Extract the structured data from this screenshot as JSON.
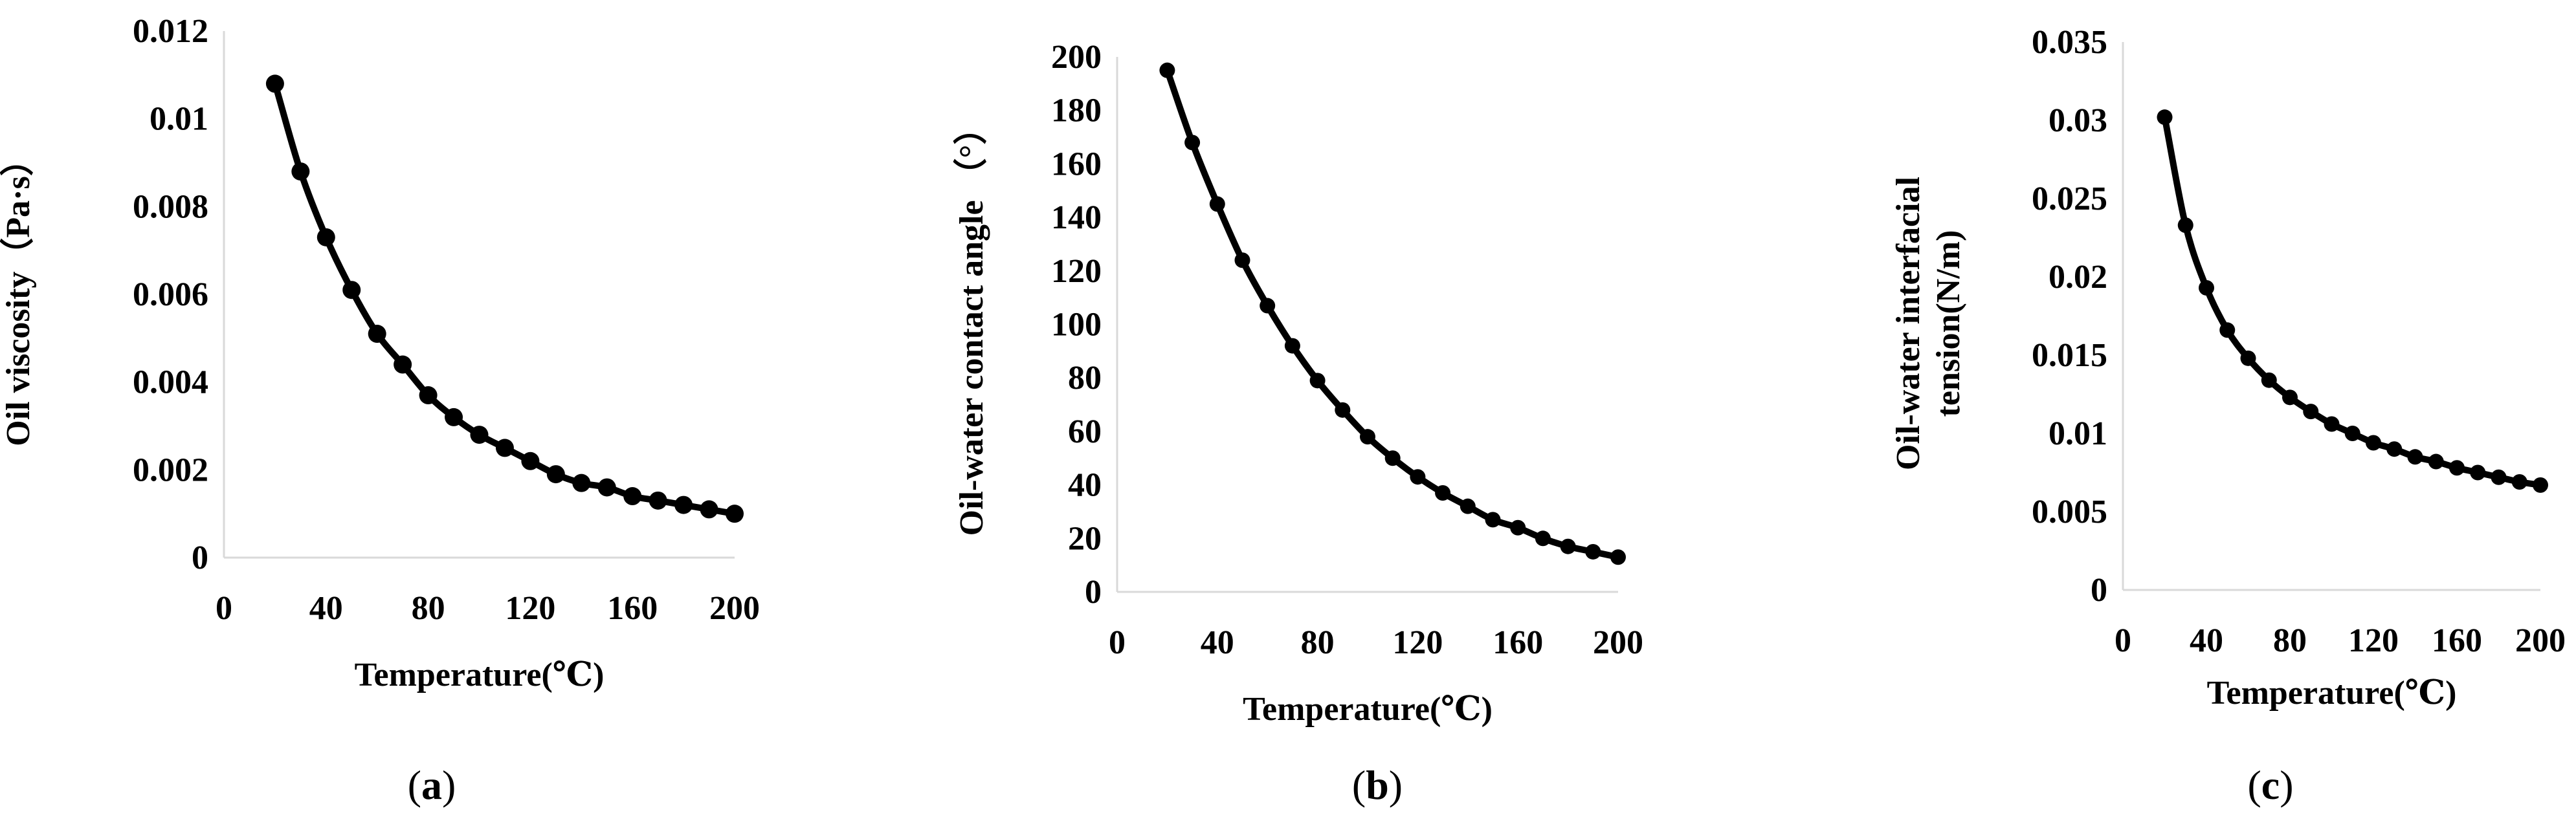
{
  "chart_data": [
    {
      "type": "line",
      "panel_label": "a",
      "xlabel": "Temperature(℃)",
      "ylabel": "Oil viscosity（Pa·s）",
      "xlim": [
        0,
        200
      ],
      "ylim": [
        0,
        0.012
      ],
      "xticks": [
        0,
        40,
        80,
        120,
        160,
        200
      ],
      "yticks": [
        0,
        0.002,
        0.004,
        0.006,
        0.008,
        0.01,
        0.012
      ],
      "ytick_labels": [
        "0",
        "0.002",
        "0.004",
        "0.006",
        "0.008",
        "0.01",
        "0.012"
      ],
      "markers": true,
      "grid": false,
      "series": [
        {
          "x": [
            20,
            30,
            40,
            50,
            60,
            70,
            80,
            90,
            100,
            110,
            120,
            130,
            140,
            150,
            160,
            170,
            180,
            190,
            200
          ],
          "y": [
            0.0108,
            0.0088,
            0.0073,
            0.0061,
            0.0051,
            0.0044,
            0.0037,
            0.0032,
            0.0028,
            0.0025,
            0.0022,
            0.0019,
            0.0017,
            0.0016,
            0.0014,
            0.0013,
            0.0012,
            0.0011,
            0.001
          ]
        }
      ]
    },
    {
      "type": "line",
      "panel_label": "b",
      "xlabel": "Temperature(℃)",
      "ylabel": "Oil-water contact angle （°）",
      "xlim": [
        0,
        200
      ],
      "ylim": [
        0,
        200
      ],
      "xticks": [
        0,
        40,
        80,
        120,
        160,
        200
      ],
      "yticks": [
        0,
        20,
        40,
        60,
        80,
        100,
        120,
        140,
        160,
        180,
        200
      ],
      "ytick_labels": [
        "0",
        "20",
        "40",
        "60",
        "80",
        "100",
        "120",
        "140",
        "160",
        "180",
        "200"
      ],
      "markers": true,
      "grid": false,
      "series": [
        {
          "x": [
            20,
            30,
            40,
            50,
            60,
            70,
            80,
            90,
            100,
            110,
            120,
            130,
            140,
            150,
            160,
            170,
            180,
            190,
            200
          ],
          "y": [
            195,
            168,
            145,
            124,
            107,
            92,
            79,
            68,
            58,
            50,
            43,
            37,
            32,
            27,
            24,
            20,
            17,
            15,
            13
          ]
        }
      ]
    },
    {
      "type": "line",
      "panel_label": "c",
      "xlabel": "Temperature(℃)",
      "ylabel": "Oil-water interfacial tension(N/m)",
      "ylabel_lines": [
        "Oil-water interfacial",
        "tension(N/m)"
      ],
      "xlim": [
        0,
        200
      ],
      "ylim": [
        0,
        0.035
      ],
      "xticks": [
        0,
        40,
        80,
        120,
        160,
        200
      ],
      "yticks": [
        0,
        0.005,
        0.01,
        0.015,
        0.02,
        0.025,
        0.03,
        0.035
      ],
      "ytick_labels": [
        "0",
        "0.005",
        "0.01",
        "0.015",
        "0.02",
        "0.025",
        "0.03",
        "0.035"
      ],
      "markers": true,
      "grid": false,
      "series": [
        {
          "x": [
            20,
            30,
            40,
            50,
            60,
            70,
            80,
            90,
            100,
            110,
            120,
            130,
            140,
            150,
            160,
            170,
            180,
            190,
            200
          ],
          "y": [
            0.0302,
            0.0233,
            0.0193,
            0.0166,
            0.0148,
            0.0134,
            0.0123,
            0.0114,
            0.0106,
            0.01,
            0.0094,
            0.009,
            0.0085,
            0.0082,
            0.0078,
            0.0075,
            0.0072,
            0.0069,
            0.0067
          ]
        }
      ]
    }
  ]
}
